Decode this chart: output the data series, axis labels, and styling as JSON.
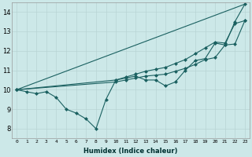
{
  "xlabel": "Humidex (Indice chaleur)",
  "background_color": "#cce8e8",
  "grid_color": "#b8d4d4",
  "line_color": "#1a6060",
  "xlim": [
    -0.5,
    23.5
  ],
  "ylim": [
    7.5,
    14.5
  ],
  "xticks": [
    0,
    1,
    2,
    3,
    4,
    5,
    6,
    7,
    8,
    9,
    10,
    11,
    12,
    13,
    14,
    15,
    16,
    17,
    18,
    19,
    20,
    21,
    22,
    23
  ],
  "yticks": [
    8,
    9,
    10,
    11,
    12,
    13,
    14
  ],
  "line1_x": [
    0,
    1,
    2,
    3,
    4,
    5,
    6,
    7,
    8,
    9,
    10,
    11,
    12,
    13,
    14,
    15,
    16,
    17,
    18,
    19,
    20,
    21,
    22,
    23
  ],
  "line1_y": [
    10.0,
    9.9,
    9.8,
    9.9,
    9.6,
    9.0,
    8.8,
    8.5,
    8.0,
    9.5,
    10.5,
    10.6,
    10.7,
    10.5,
    10.5,
    10.2,
    10.4,
    11.0,
    11.5,
    11.6,
    12.4,
    12.3,
    13.5,
    14.4
  ],
  "line2_x": [
    0,
    23
  ],
  "line2_y": [
    10.0,
    14.4
  ],
  "line3_x": [
    0,
    10,
    11,
    12,
    13,
    14,
    15,
    16,
    17,
    18,
    19,
    20,
    21,
    22,
    23
  ],
  "line3_y": [
    10.0,
    10.5,
    10.65,
    10.8,
    10.95,
    11.05,
    11.15,
    11.35,
    11.55,
    11.85,
    12.15,
    12.45,
    12.4,
    13.4,
    13.55
  ],
  "line4_x": [
    0,
    10,
    11,
    12,
    13,
    14,
    15,
    16,
    17,
    18,
    19,
    20,
    21,
    22,
    23
  ],
  "line4_y": [
    10.0,
    10.4,
    10.5,
    10.6,
    10.7,
    10.75,
    10.8,
    10.95,
    11.1,
    11.3,
    11.55,
    11.65,
    12.3,
    12.35,
    13.55
  ]
}
